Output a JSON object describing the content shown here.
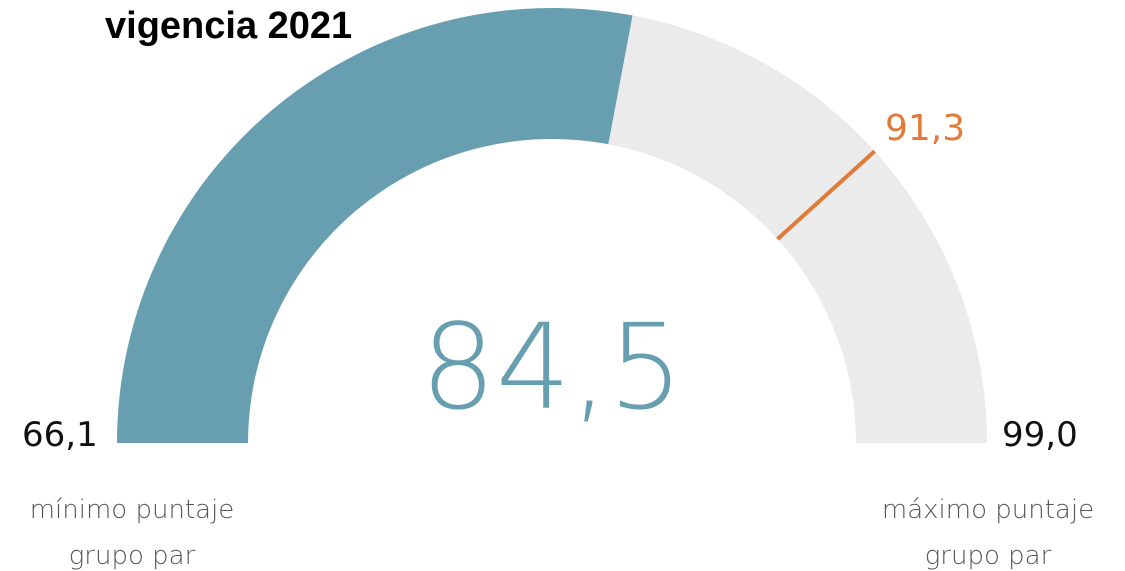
{
  "chart_data": {
    "type": "gauge",
    "title": "vigencia 2021",
    "value": {
      "value": 84.5,
      "label": "84,5"
    },
    "min": {
      "value": 66.1,
      "label": "66,1"
    },
    "max": {
      "value": 99.0,
      "label": "99,0"
    },
    "target": {
      "value": 91.3,
      "label": "91,3"
    },
    "min_caption": [
      "mínimo puntaje",
      "grupo par"
    ],
    "max_caption": [
      "máximo puntaje",
      "grupo par"
    ],
    "color": "#679fb1",
    "track_color": "#ebebeb",
    "target_color": "#e07b39"
  }
}
